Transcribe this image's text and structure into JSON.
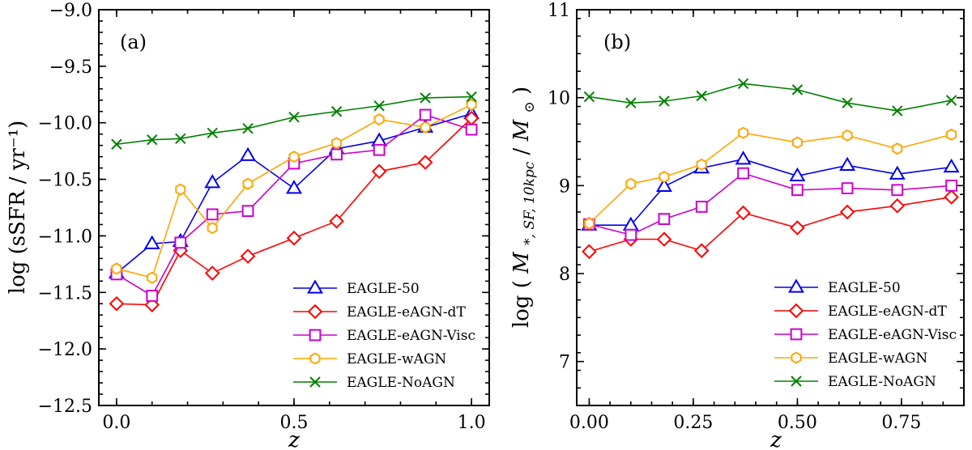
{
  "chart_data": [
    {
      "type": "line",
      "panel_label": "(a)",
      "xlabel": "z",
      "ylabel": "log (sSFR / yr⁻¹)",
      "xlim": [
        -0.05,
        1.05
      ],
      "ylim": [
        -12.5,
        -9.0
      ],
      "xticks": [
        0.0,
        0.5,
        1.0
      ],
      "xtick_labels": [
        "0.0",
        "0.5",
        "1.0"
      ],
      "yticks": [
        -12.5,
        -12.0,
        -11.5,
        -11.0,
        -10.5,
        -10.0,
        -9.5,
        -9.0
      ],
      "ytick_labels": [
        "−12.5",
        "−12.0",
        "−11.5",
        "−11.0",
        "−10.5",
        "−10.0",
        "−9.5",
        "−9.0"
      ],
      "legend_position": "lower-right",
      "series": [
        {
          "name": "EAGLE-50",
          "color": "#0000ee",
          "marker": "triangle",
          "x": [
            0.0,
            0.1,
            0.18,
            0.27,
            0.37,
            0.5,
            0.62,
            0.74,
            0.87,
            1.0
          ],
          "y": [
            -11.33,
            -11.07,
            -11.05,
            -10.53,
            -10.29,
            -10.58,
            -10.23,
            -10.16,
            -10.04,
            -9.92
          ]
        },
        {
          "name": "EAGLE-eAGN-dT",
          "color": "#ff0000",
          "marker": "diamond",
          "x": [
            0.0,
            0.1,
            0.18,
            0.27,
            0.37,
            0.5,
            0.62,
            0.74,
            0.87,
            1.0
          ],
          "y": [
            -11.6,
            -11.61,
            -11.13,
            -11.33,
            -11.18,
            -11.02,
            -10.87,
            -10.43,
            -10.35,
            -9.96
          ]
        },
        {
          "name": "EAGLE-eAGN-Visc",
          "color": "#cc00cc",
          "marker": "square",
          "x": [
            0.0,
            0.1,
            0.18,
            0.27,
            0.37,
            0.5,
            0.62,
            0.74,
            0.87,
            1.0
          ],
          "y": [
            -11.34,
            -11.53,
            -11.06,
            -10.81,
            -10.78,
            -10.36,
            -10.28,
            -10.24,
            -9.93,
            -10.06
          ]
        },
        {
          "name": "EAGLE-wAGN",
          "color": "#ffa500",
          "marker": "hexagon",
          "x": [
            0.0,
            0.1,
            0.18,
            0.27,
            0.37,
            0.5,
            0.62,
            0.74,
            0.87,
            1.0
          ],
          "y": [
            -11.29,
            -11.37,
            -10.59,
            -10.93,
            -10.54,
            -10.3,
            -10.18,
            -9.97,
            -10.04,
            -9.84
          ]
        },
        {
          "name": "EAGLE-NoAGN",
          "color": "#008000",
          "marker": "x",
          "x": [
            0.0,
            0.1,
            0.18,
            0.27,
            0.37,
            0.5,
            0.62,
            0.74,
            0.87,
            1.0
          ],
          "y": [
            -10.19,
            -10.15,
            -10.14,
            -10.09,
            -10.05,
            -9.95,
            -9.9,
            -9.85,
            -9.78,
            -9.77
          ]
        }
      ]
    },
    {
      "type": "line",
      "panel_label": "(b)",
      "xlabel": "z",
      "ylabel": "log (M*, SF, 10kpc / M⊙)",
      "ylabel_main": "M",
      "ylabel_sub": "*, SF, 10kpc",
      "ylabel_den": "M",
      "ylabel_den_sub": "⊙",
      "ylabel_log": "log",
      "xlim": [
        -0.03,
        0.9
      ],
      "ylim": [
        6.5,
        11.0
      ],
      "xticks": [
        0.0,
        0.25,
        0.5,
        0.75
      ],
      "xtick_labels": [
        "0.00",
        "0.25",
        "0.50",
        "0.75"
      ],
      "yticks": [
        7,
        8,
        9,
        10,
        11
      ],
      "ytick_labels": [
        "7",
        "8",
        "9",
        "10",
        "11"
      ],
      "legend_position": "lower-right",
      "series": [
        {
          "name": "EAGLE-50",
          "color": "#0000ee",
          "marker": "triangle",
          "x": [
            0.0,
            0.1,
            0.18,
            0.27,
            0.37,
            0.5,
            0.62,
            0.74,
            0.87
          ],
          "y": [
            8.55,
            8.55,
            8.99,
            9.2,
            9.3,
            9.11,
            9.23,
            9.13,
            9.21
          ]
        },
        {
          "name": "EAGLE-eAGN-dT",
          "color": "#ff0000",
          "marker": "diamond",
          "x": [
            0.0,
            0.1,
            0.18,
            0.27,
            0.37,
            0.5,
            0.62,
            0.74,
            0.87
          ],
          "y": [
            8.25,
            8.39,
            8.39,
            8.26,
            8.69,
            8.52,
            8.7,
            8.77,
            8.87
          ]
        },
        {
          "name": "EAGLE-eAGN-Visc",
          "color": "#cc00cc",
          "marker": "square",
          "x": [
            0.0,
            0.1,
            0.18,
            0.27,
            0.37,
            0.5,
            0.62,
            0.74,
            0.87
          ],
          "y": [
            8.56,
            8.44,
            8.62,
            8.76,
            9.14,
            8.95,
            8.97,
            8.95,
            9.0
          ]
        },
        {
          "name": "EAGLE-wAGN",
          "color": "#ffa500",
          "marker": "hexagon",
          "x": [
            0.0,
            0.1,
            0.18,
            0.27,
            0.37,
            0.5,
            0.62,
            0.74,
            0.87
          ],
          "y": [
            8.57,
            9.02,
            9.1,
            9.24,
            9.6,
            9.49,
            9.57,
            9.42,
            9.58
          ]
        },
        {
          "name": "EAGLE-NoAGN",
          "color": "#008000",
          "marker": "x",
          "x": [
            0.0,
            0.1,
            0.18,
            0.27,
            0.37,
            0.5,
            0.62,
            0.74,
            0.87
          ],
          "y": [
            10.01,
            9.94,
            9.96,
            10.02,
            10.16,
            10.09,
            9.94,
            9.85,
            9.97
          ]
        }
      ]
    }
  ]
}
